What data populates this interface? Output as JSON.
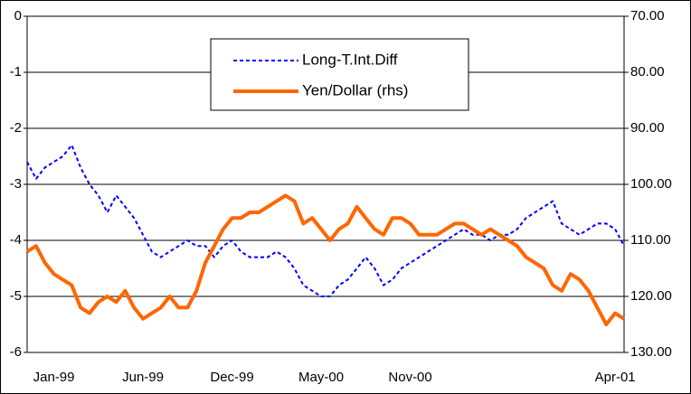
{
  "chart_data": {
    "type": "line",
    "categories": [
      null,
      null,
      null,
      "Jan-99",
      null,
      null,
      null,
      null,
      null,
      null,
      null,
      null,
      null,
      "Jun-99",
      null,
      null,
      null,
      null,
      null,
      null,
      null,
      null,
      null,
      "Dec-99",
      null,
      null,
      null,
      null,
      null,
      null,
      null,
      null,
      null,
      "May-00",
      null,
      null,
      null,
      null,
      null,
      null,
      null,
      null,
      null,
      "Nov-00",
      null,
      null,
      null,
      null,
      null,
      null,
      null,
      null,
      null,
      null,
      null,
      null,
      null,
      null,
      null,
      null,
      null,
      null,
      null,
      null,
      null,
      null,
      "Apr-01",
      null
    ],
    "series": [
      {
        "name": "Long-T.Int.Diff",
        "color": "#0000ff",
        "dashed": true,
        "values": [
          -2.6,
          -2.9,
          -2.7,
          -2.6,
          -2.5,
          -2.3,
          -2.7,
          -3.0,
          -3.2,
          -3.5,
          -3.2,
          -3.4,
          -3.6,
          -3.9,
          -4.2,
          -4.3,
          -4.2,
          -4.1,
          -4.0,
          -4.1,
          -4.1,
          -4.3,
          -4.1,
          -4.0,
          -4.2,
          -4.3,
          -4.3,
          -4.3,
          -4.2,
          -4.3,
          -4.5,
          -4.8,
          -4.9,
          -5.0,
          -5.0,
          -4.8,
          -4.7,
          -4.5,
          -4.3,
          -4.5,
          -4.8,
          -4.7,
          -4.5,
          -4.4,
          -4.3,
          -4.2,
          -4.1,
          -4.0,
          -3.9,
          -3.8,
          -3.9,
          -3.9,
          -4.0,
          -3.9,
          -3.9,
          -3.8,
          -3.6,
          -3.5,
          -3.4,
          -3.3,
          -3.7,
          -3.8,
          -3.9,
          -3.8,
          -3.7,
          -3.7,
          -3.8,
          -4.1
        ]
      },
      {
        "name": "Yen/Dollar (rhs)",
        "color": "#ff6600",
        "axis": "y2",
        "values": [
          112,
          111,
          114,
          116,
          117,
          118,
          122,
          123,
          121,
          120,
          121,
          119,
          122,
          124,
          123,
          122,
          120,
          122,
          122,
          119,
          114,
          111,
          108,
          106,
          106,
          105,
          105,
          104,
          103,
          102,
          103,
          107,
          106,
          108,
          110,
          108,
          107,
          104,
          106,
          108,
          109,
          106,
          106,
          107,
          109,
          109,
          109,
          108,
          107,
          107,
          108,
          109,
          108,
          109,
          110,
          111,
          113,
          114,
          115,
          118,
          119,
          116,
          117,
          119,
          122,
          125,
          123,
          124
        ]
      }
    ],
    "ylim": [
      -6,
      0
    ],
    "yticks": [
      0,
      -1,
      -2,
      -3,
      -4,
      -5,
      -6
    ],
    "y2lim": [
      130,
      70
    ],
    "y2ticks": [
      {
        "value": 70,
        "label": "70.00"
      },
      {
        "value": 80,
        "label": "80.00"
      },
      {
        "value": 90,
        "label": "90.00"
      },
      {
        "value": 100,
        "label": "100.00"
      },
      {
        "value": 110,
        "label": "110.00"
      },
      {
        "value": 120,
        "label": "120.00"
      },
      {
        "value": 130,
        "label": "130.00"
      }
    ],
    "grid": true,
    "legend": "top"
  }
}
